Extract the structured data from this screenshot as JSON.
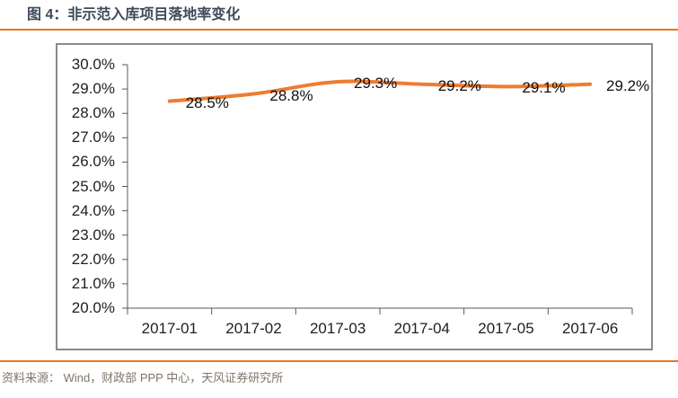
{
  "header": {
    "title": "图 4：非示范入库项目落地率变化"
  },
  "footer": {
    "source": "资料来源： Wind，财政部 PPP 中心，天风证券研究所"
  },
  "colors": {
    "rule_orange": "#E8761D",
    "line_orange": "#ED7D31",
    "box_border_gray": "#8A8A8A",
    "axis_gray": "#595959",
    "axis_text": "#1F1F1F",
    "title_navy": "#3E4A5B",
    "source_gray": "#7E756A"
  },
  "chart_data": {
    "type": "line",
    "title": "图 4：非示范入库项目落地率变化",
    "categories": [
      "2017-01",
      "2017-02",
      "2017-03",
      "2017-04",
      "2017-05",
      "2017-06"
    ],
    "values": [
      28.5,
      28.8,
      29.3,
      29.2,
      29.1,
      29.2
    ],
    "data_labels": [
      "28.5%",
      "28.8%",
      "29.3%",
      "29.2%",
      "29.1%",
      "29.2%"
    ],
    "xlabel": "",
    "ylabel": "",
    "ylim": [
      20,
      30
    ],
    "y_tick_step": 1,
    "y_tick_labels": [
      "30.0%",
      "29.0%",
      "28.0%",
      "27.0%",
      "26.0%",
      "25.0%",
      "24.0%",
      "23.0%",
      "22.0%",
      "21.0%",
      "20.0%"
    ],
    "grid": false,
    "legend": false,
    "line_smooth": true,
    "line_width": 4
  }
}
